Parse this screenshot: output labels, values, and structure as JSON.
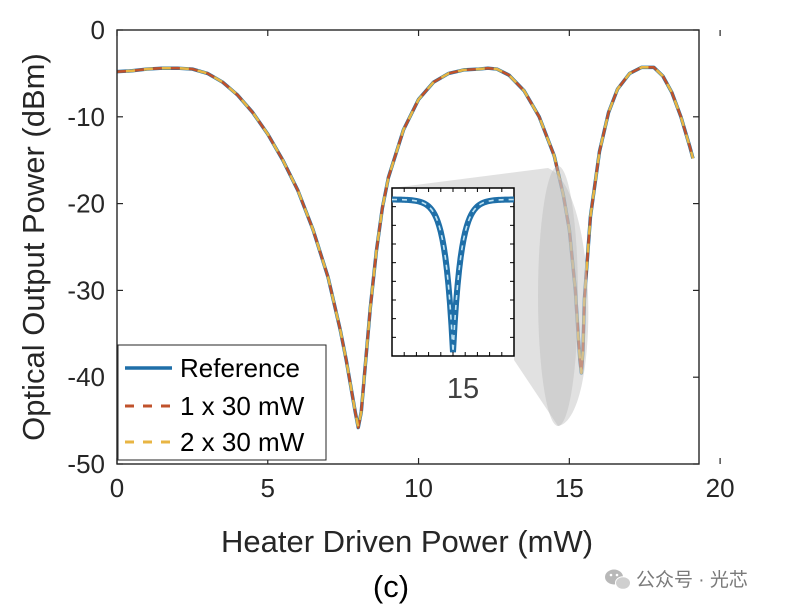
{
  "chart_data": {
    "type": "line",
    "xlabel": "Heater Driven Power (mW)",
    "ylabel": "Optical Output Power (dBm)",
    "xlim": [
      0,
      19.3
    ],
    "ylim": [
      -50,
      0
    ],
    "xticks": [
      0,
      5,
      10,
      15,
      20
    ],
    "xtick_labels": [
      "0",
      "5",
      "10",
      "15",
      "20"
    ],
    "yticks": [
      0,
      -10,
      -20,
      -30,
      -40,
      -50
    ],
    "ytick_labels": [
      "0",
      "-10",
      "-20",
      "-30",
      "-40",
      "-50"
    ],
    "grid": false,
    "legend_position": "bottom-left",
    "curve_points": {
      "x": [
        0,
        0.5,
        1,
        1.5,
        2,
        2.5,
        3,
        3.5,
        4,
        4.5,
        5,
        5.5,
        6,
        6.5,
        7,
        7.2,
        7.4,
        7.6,
        7.8,
        7.9,
        8.0,
        8.1,
        8.2,
        8.4,
        8.6,
        8.8,
        9.0,
        9.5,
        10,
        10.5,
        11,
        11.5,
        12,
        12.3,
        12.6,
        13,
        13.5,
        14,
        14.5,
        14.8,
        15.0,
        15.2,
        15.3,
        15.35,
        15.4,
        15.45,
        15.5,
        15.7,
        16.0,
        16.3,
        16.6,
        17.0,
        17.4,
        17.8,
        18.1,
        18.4,
        18.7,
        19.0,
        19.1
      ],
      "y": [
        -4.8,
        -4.7,
        -4.5,
        -4.4,
        -4.4,
        -4.5,
        -5.0,
        -6.0,
        -7.5,
        -9.5,
        -12.0,
        -15.0,
        -18.5,
        -23.0,
        -28.5,
        -31.5,
        -34.5,
        -38.0,
        -42.0,
        -44.0,
        -45.8,
        -44.0,
        -40.0,
        -32.0,
        -25.5,
        -20.5,
        -17.0,
        -11.5,
        -8.0,
        -6.0,
        -5.0,
        -4.6,
        -4.5,
        -4.4,
        -4.5,
        -5.2,
        -7.0,
        -10.0,
        -14.5,
        -19.0,
        -23.0,
        -30.0,
        -35.5,
        -38.0,
        -39.5,
        -37.0,
        -31.0,
        -21.5,
        -14.0,
        -9.5,
        -6.8,
        -5.0,
        -4.3,
        -4.3,
        -5.3,
        -7.2,
        -10.0,
        -13.5,
        -14.8
      ]
    },
    "series": [
      {
        "name": "Reference",
        "color": "#1f6fa8",
        "style": "solid"
      },
      {
        "name": "1 x 30 mW",
        "color": "#c0522b",
        "style": "dashed"
      },
      {
        "name": "2 x 30 mW",
        "color": "#e8b543",
        "style": "dashed"
      }
    ],
    "inset": {
      "xlim": [
        14.5,
        16.2
      ],
      "ylim": [
        -40,
        -18
      ],
      "xtick_label": "15"
    }
  },
  "panel_label": "(c)",
  "watermark": {
    "text": "公众号 · 光芯",
    "icon": "wechat-icon"
  }
}
